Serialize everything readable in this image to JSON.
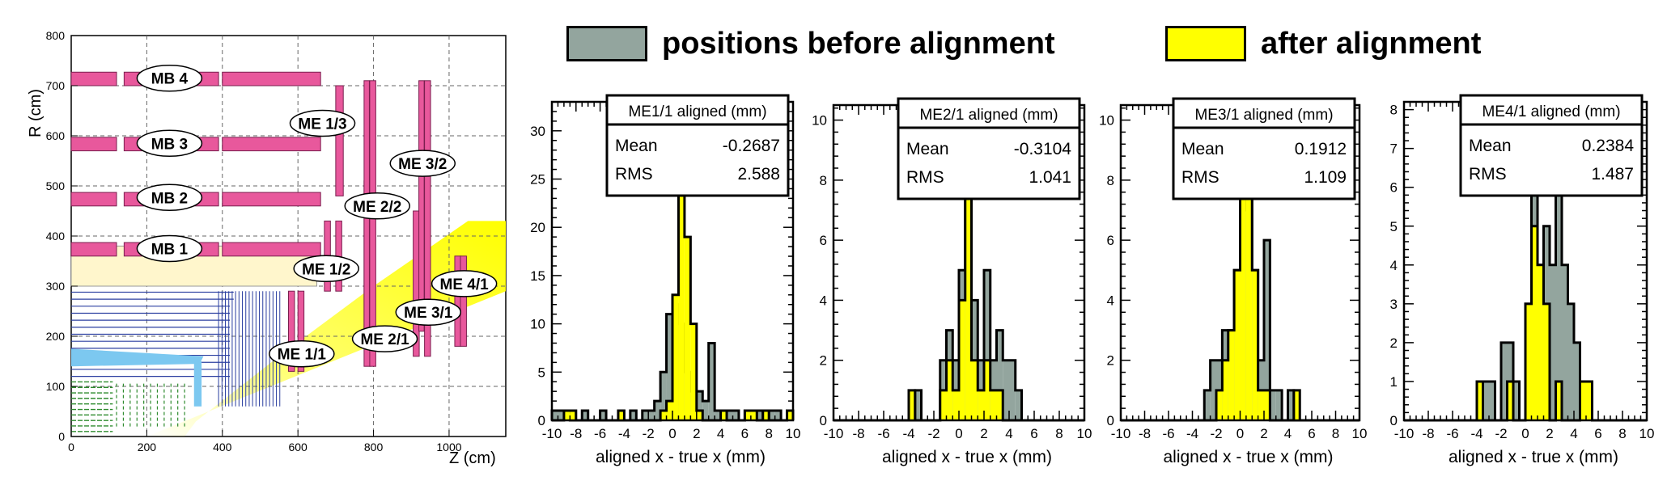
{
  "legend": {
    "before_label": "positions before alignment",
    "after_label": "after alignment",
    "before_color": "#93a59e",
    "after_color": "#ffff00"
  },
  "layout_panel": {
    "type": "diagram",
    "ylabel": "R (cm)",
    "xlabel": "Z (cm)",
    "xlim": [
      0,
      1150
    ],
    "ylim": [
      0,
      800
    ],
    "xticks": [
      "0",
      "200",
      "400",
      "600",
      "800",
      "1000"
    ],
    "yticks": [
      "0",
      "100",
      "200",
      "300",
      "400",
      "500",
      "600",
      "700",
      "800"
    ],
    "labels": [
      "MB 4",
      "MB 3",
      "MB 2",
      "MB 1",
      "ME 1/3",
      "ME 3/2",
      "ME 2/2",
      "ME 1/2",
      "ME 4/1",
      "ME 3/1",
      "ME 2/1",
      "ME 1/1"
    ],
    "chamber_color": "#e8589c",
    "region_color": "#fff6cc",
    "beam_color": "#ffff00"
  },
  "chart_data": [
    {
      "type": "histogram",
      "title": "ME1/1 aligned (mm)",
      "stats": {
        "mean_label": "Mean",
        "mean": "-0.2687",
        "rms_label": "RMS",
        "rms": "2.588"
      },
      "xlabel": "aligned x - true x (mm)",
      "xlim": [
        -10,
        10
      ],
      "ylim": [
        0,
        33
      ],
      "xticks": [
        "-10",
        "-8",
        "-6",
        "-4",
        "-2",
        "0",
        "2",
        "4",
        "6",
        "8",
        "10"
      ],
      "yticks": [
        "0",
        "5",
        "10",
        "15",
        "20",
        "25",
        "30"
      ],
      "series": [
        {
          "name": "positions before alignment",
          "x0": -10,
          "width": 0.5,
          "values": [
            1,
            1,
            1,
            0,
            0,
            1,
            0,
            0,
            1,
            0,
            0,
            0,
            0,
            1,
            0,
            1,
            1,
            2,
            5,
            11,
            12,
            10,
            5,
            3,
            3,
            2,
            8,
            1,
            1,
            1,
            1,
            0,
            1,
            1,
            1,
            0,
            1,
            1,
            0,
            1
          ]
        },
        {
          "name": "after alignment",
          "x0": -10,
          "width": 0.5,
          "values": [
            0,
            0,
            1,
            1,
            0,
            0,
            0,
            0,
            0,
            0,
            0,
            1,
            0,
            0,
            0,
            0,
            0,
            0,
            1,
            2,
            13,
            30,
            19,
            10,
            1,
            0,
            0,
            0,
            1,
            0,
            0,
            0,
            1,
            1,
            0,
            1,
            0,
            0,
            0,
            1
          ]
        }
      ]
    },
    {
      "type": "histogram",
      "title": "ME2/1 aligned (mm)",
      "stats": {
        "mean_label": "Mean",
        "mean": "-0.3104",
        "rms_label": "RMS",
        "rms": "1.041"
      },
      "xlabel": "aligned x - true x (mm)",
      "xlim": [
        -10,
        10
      ],
      "ylim": [
        0,
        10.5
      ],
      "xticks": [
        "-10",
        "-8",
        "-6",
        "-4",
        "-2",
        "0",
        "2",
        "4",
        "6",
        "8",
        "10"
      ],
      "yticks": [
        "0",
        "2",
        "4",
        "6",
        "8",
        "10"
      ],
      "series": [
        {
          "name": "positions before alignment",
          "x0": -10,
          "width": 0.5,
          "values": [
            0,
            0,
            0,
            0,
            0,
            0,
            0,
            0,
            0,
            0,
            0,
            0,
            0,
            1,
            0,
            0,
            0,
            2,
            3,
            2,
            5,
            9,
            4,
            2,
            5,
            2,
            3,
            2,
            2,
            1,
            0,
            0,
            0,
            0,
            0,
            0,
            0,
            0,
            0,
            0
          ]
        },
        {
          "name": "after alignment",
          "x0": -10,
          "width": 0.5,
          "values": [
            0,
            0,
            0,
            0,
            0,
            0,
            0,
            0,
            0,
            0,
            0,
            0,
            1,
            0,
            0,
            0,
            0,
            1,
            2,
            1,
            4,
            8,
            2,
            1,
            2,
            1,
            1,
            0,
            0,
            0,
            0,
            0,
            0,
            0,
            0,
            0,
            0,
            0,
            0,
            0
          ]
        }
      ]
    },
    {
      "type": "histogram",
      "title": "ME3/1 aligned (mm)",
      "stats": {
        "mean_label": "Mean",
        "mean": "0.1912",
        "rms_label": "RMS",
        "rms": "1.109"
      },
      "xlabel": "aligned x - true x (mm)",
      "xlim": [
        -10,
        10
      ],
      "ylim": [
        0,
        10.5
      ],
      "xticks": [
        "-10",
        "-8",
        "-6",
        "-4",
        "-2",
        "0",
        "2",
        "4",
        "6",
        "8",
        "10"
      ],
      "yticks": [
        "0",
        "2",
        "4",
        "6",
        "8",
        "10"
      ],
      "series": [
        {
          "name": "positions before alignment",
          "x0": -10,
          "width": 0.5,
          "values": [
            0,
            0,
            0,
            0,
            0,
            0,
            0,
            0,
            0,
            0,
            0,
            0,
            0,
            0,
            1,
            2,
            2,
            3,
            3,
            5,
            7,
            9,
            5,
            2,
            6,
            1,
            1,
            0,
            1,
            0,
            0,
            0,
            0,
            0,
            0,
            0,
            0,
            0,
            0,
            0
          ]
        },
        {
          "name": "after alignment",
          "x0": -10,
          "width": 0.5,
          "values": [
            0,
            0,
            0,
            0,
            0,
            0,
            0,
            0,
            0,
            0,
            0,
            0,
            0,
            0,
            0,
            0,
            1,
            2,
            3,
            5,
            8,
            10,
            5,
            1,
            1,
            0,
            0,
            0,
            0,
            1,
            0,
            0,
            0,
            0,
            0,
            0,
            0,
            0,
            0,
            0
          ]
        }
      ]
    },
    {
      "type": "histogram",
      "title": "ME4/1 aligned (mm)",
      "stats": {
        "mean_label": "Mean",
        "mean": "0.2384",
        "rms_label": "RMS",
        "rms": "1.487"
      },
      "xlabel": "aligned x - true x (mm)",
      "xlim": [
        -10,
        10
      ],
      "ylim": [
        0,
        8.2
      ],
      "xticks": [
        "-10",
        "-8",
        "-6",
        "-4",
        "-2",
        "0",
        "2",
        "4",
        "6",
        "8",
        "10"
      ],
      "yticks": [
        "0",
        "1",
        "2",
        "3",
        "4",
        "5",
        "6",
        "7",
        "8"
      ],
      "series": [
        {
          "name": "positions before alignment",
          "x0": -10,
          "width": 0.5,
          "values": [
            0,
            0,
            0,
            0,
            0,
            0,
            0,
            0,
            0,
            0,
            0,
            0,
            0,
            1,
            1,
            0,
            2,
            2,
            1,
            0,
            3,
            7,
            4,
            5,
            4,
            6,
            4,
            3,
            2,
            1,
            1,
            0,
            0,
            0,
            0,
            0,
            0,
            0,
            0,
            0
          ]
        },
        {
          "name": "after alignment",
          "x0": -10,
          "width": 0.5,
          "values": [
            0,
            0,
            0,
            0,
            0,
            0,
            0,
            0,
            0,
            0,
            0,
            0,
            1,
            0,
            0,
            0,
            0,
            1,
            0,
            0,
            3,
            5,
            4,
            3,
            0,
            1,
            0,
            0,
            0,
            1,
            1,
            0,
            0,
            0,
            0,
            0,
            0,
            0,
            0,
            0
          ]
        }
      ]
    }
  ]
}
